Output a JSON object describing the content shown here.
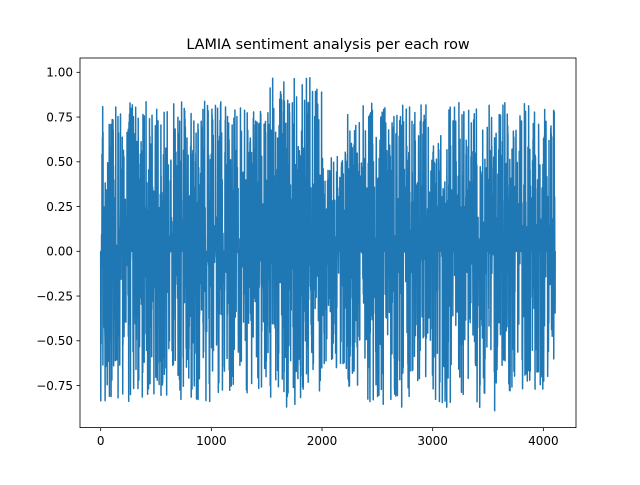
{
  "chart_data": {
    "type": "line",
    "title": "LAMIA sentiment analysis per each row",
    "xlabel": "",
    "ylabel": "",
    "xlim": [
      -187,
      4295
    ],
    "ylim": [
      -0.985,
      1.08
    ],
    "xticks": [
      0,
      1000,
      2000,
      3000,
      4000
    ],
    "xtick_labels": [
      "0",
      "1000",
      "2000",
      "3000",
      "4000"
    ],
    "yticks": [
      -0.75,
      -0.5,
      -0.25,
      0.0,
      0.25,
      0.5,
      0.75,
      1.0
    ],
    "ytick_labels": [
      "−0.75",
      "−0.50",
      "−0.25",
      "0.00",
      "0.25",
      "0.50",
      "0.75",
      "1.00"
    ],
    "grid": false,
    "legend": "none",
    "series": [
      {
        "color": "#1f77b4",
        "n_points": 4108,
        "x_range": [
          0,
          4107
        ],
        "y_range": [
          -0.89,
          0.97
        ],
        "segments": [
          {
            "x_range": [
              0,
              1000
            ],
            "y_max": 0.84,
            "y_min": -0.84,
            "density": 0.62
          },
          {
            "x_range": [
              1000,
              1500
            ],
            "y_max": 0.84,
            "y_min": -0.8,
            "density": 0.62
          },
          {
            "x_range": [
              1500,
              2000
            ],
            "y_max": 0.97,
            "y_min": -0.87,
            "density": 0.66
          },
          {
            "x_range": [
              2000,
              2200
            ],
            "y_max": 0.55,
            "y_min": -0.66,
            "density": 0.7
          },
          {
            "x_range": [
              2200,
              3000
            ],
            "y_max": 0.83,
            "y_min": -0.87,
            "density": 0.62
          },
          {
            "x_range": [
              3000,
              3600
            ],
            "y_max": 0.83,
            "y_min": -0.89,
            "density": 0.62
          },
          {
            "x_range": [
              3600,
              4107
            ],
            "y_max": 0.84,
            "y_min": -0.78,
            "density": 0.62
          }
        ],
        "notable_points": [
          {
            "x": 1890,
            "y": 0.97
          },
          {
            "x": 1680,
            "y": -0.87
          },
          {
            "x": 2720,
            "y": -0.87
          },
          {
            "x": 3560,
            "y": -0.89
          },
          {
            "x": 2130,
            "y": -0.65
          },
          {
            "x": 0,
            "y": 0.0
          },
          {
            "x": 4107,
            "y": 0.0
          }
        ]
      }
    ]
  }
}
